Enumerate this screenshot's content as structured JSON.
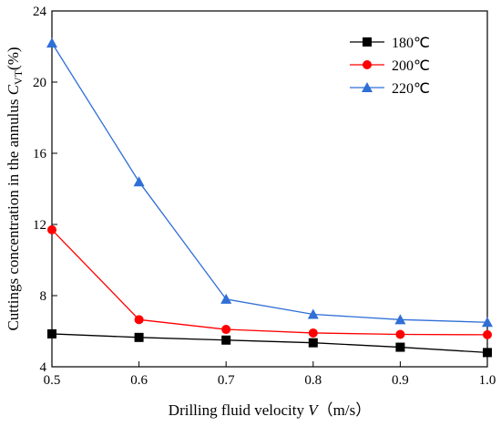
{
  "chart_data": {
    "type": "line",
    "xlabel": {
      "prefix": "Drilling fluid velocity ",
      "var": "V",
      "suffix": "（m/s）"
    },
    "ylabel": {
      "prefix": "Cuttings concentration in the annulus ",
      "var": "C",
      "sub": "VT",
      "suffix": "(%)"
    },
    "xlim": [
      0.5,
      1.0
    ],
    "ylim": [
      4,
      24
    ],
    "xticks": [
      "0.5",
      "0.6",
      "0.7",
      "0.8",
      "0.9",
      "1.0"
    ],
    "yticks": [
      "4",
      "8",
      "12",
      "16",
      "20",
      "24"
    ],
    "x": [
      0.5,
      0.6,
      0.7,
      0.8,
      0.9,
      1.0
    ],
    "grid": false,
    "legend_position": "top-right",
    "series": [
      {
        "name": "180℃",
        "marker": "square",
        "color": "#000000",
        "values": [
          5.85,
          5.65,
          5.5,
          5.35,
          5.1,
          4.8
        ]
      },
      {
        "name": "200℃",
        "marker": "circle",
        "color": "#ff0000",
        "values": [
          11.7,
          6.65,
          6.1,
          5.9,
          5.82,
          5.8
        ]
      },
      {
        "name": "220℃",
        "marker": "triangle",
        "color": "#2f6fd6",
        "values": [
          22.2,
          14.4,
          7.8,
          6.95,
          6.65,
          6.5
        ]
      }
    ]
  }
}
